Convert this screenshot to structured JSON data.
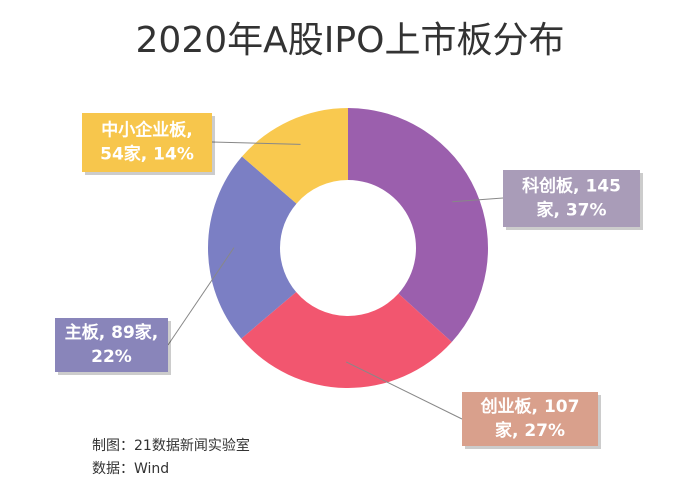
{
  "chart_data": {
    "type": "donut",
    "title": "2020年A股IPO上市板分布",
    "categories": [
      "科创板",
      "创业板",
      "主板",
      "中小企业板"
    ],
    "values": [
      145,
      107,
      89,
      54
    ],
    "value_labels": [
      [
        "科创板, 145",
        "家, 37%"
      ],
      [
        "创业板, 107",
        "家, 27%"
      ],
      [
        "主板, 89家,",
        "22%"
      ],
      [
        "中小企业板,",
        "54家, 14%"
      ]
    ],
    "colors": [
      "#9b5fad",
      "#f2566f",
      "#7b7fc4",
      "#f9c94f"
    ],
    "label_colors": [
      "#a99cb8",
      "#d9a08c",
      "#8985ba",
      "#f7c64c"
    ],
    "notes": [
      "制图：21数据新闻实验室",
      "数据：Wind"
    ]
  }
}
